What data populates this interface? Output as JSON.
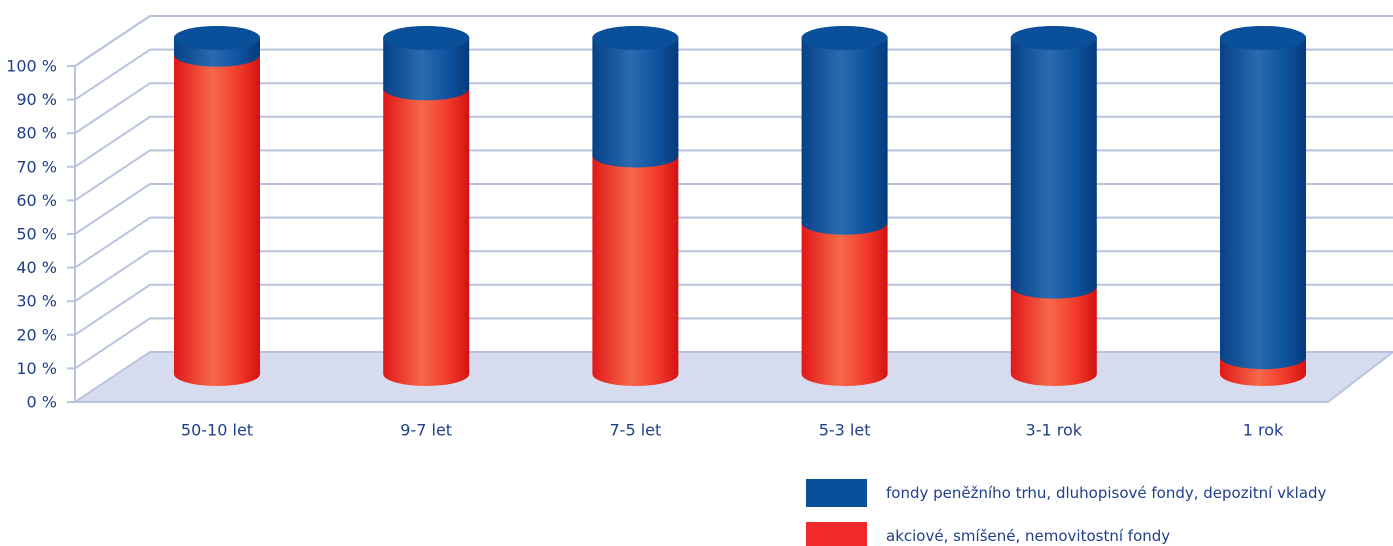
{
  "chart_data": {
    "type": "bar",
    "stacked": true,
    "style": "3d-cylinder",
    "title": "",
    "xlabel": "",
    "ylabel": "",
    "ylim": [
      0,
      100
    ],
    "y_ticks": [
      {
        "value": 0,
        "label": "0 %"
      },
      {
        "value": 10,
        "label": "10 %"
      },
      {
        "value": 20,
        "label": "20 %"
      },
      {
        "value": 30,
        "label": "30 %"
      },
      {
        "value": 40,
        "label": "40 %"
      },
      {
        "value": 50,
        "label": "50 %"
      },
      {
        "value": 60,
        "label": "60 %"
      },
      {
        "value": 70,
        "label": "70 %"
      },
      {
        "value": 80,
        "label": "80 %"
      },
      {
        "value": 90,
        "label": "90 %"
      },
      {
        "value": 100,
        "label": "100 %"
      }
    ],
    "categories": [
      "50-10 let",
      "9-7 let",
      "7-5 let",
      "5-3 let",
      "3-1 rok",
      "1 rok"
    ],
    "series": [
      {
        "name": "akciové, smíšené, nemovitostní fondy",
        "color": "#f02a2a",
        "values": [
          95,
          85,
          65,
          45,
          26,
          5
        ]
      },
      {
        "name": "fondy peněžního trhu, dluhopisové fondy, depozitní vklady",
        "color": "#0a4f9a",
        "values": [
          5,
          15,
          35,
          55,
          74,
          95
        ]
      }
    ],
    "legend": {
      "position": "bottom-right",
      "order": [
        1,
        0
      ]
    },
    "grid": true
  },
  "colors": {
    "grid_line": "#b9c3dd",
    "floor": "#d6dcee",
    "text": "#1f3f8a"
  }
}
